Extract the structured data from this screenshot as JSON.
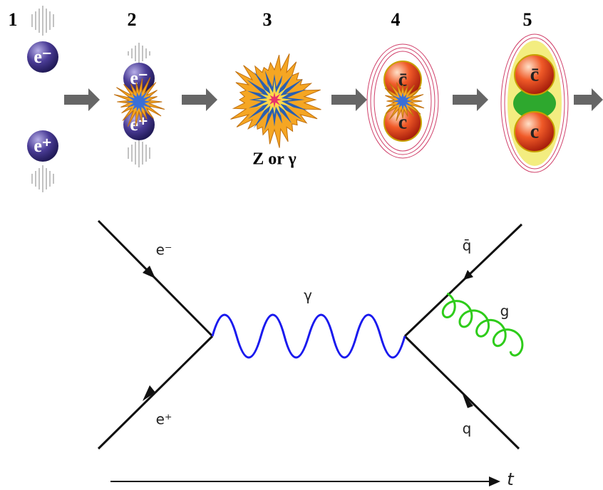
{
  "steps": [
    {
      "number": "1",
      "particles": [
        "e⁻",
        "e⁺"
      ]
    },
    {
      "number": "2",
      "particles": [
        "e⁻",
        "e⁺"
      ]
    },
    {
      "number": "3",
      "label": "Z or γ"
    },
    {
      "number": "4",
      "particles": [
        "c̄",
        "c"
      ]
    },
    {
      "number": "5",
      "particles": [
        "c̄",
        "c"
      ]
    }
  ],
  "feynman": {
    "incoming": [
      "e⁻",
      "e⁺"
    ],
    "propagator": "γ",
    "outgoing": [
      "q̄",
      "q"
    ],
    "gluon": "g",
    "time_axis": "t"
  }
}
